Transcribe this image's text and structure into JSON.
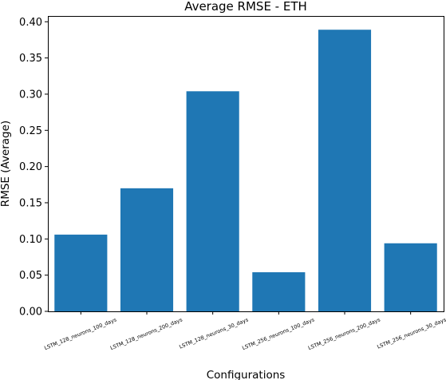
{
  "chart_data": {
    "type": "bar",
    "title": "Average RMSE - ETH",
    "xlabel": "Configurations",
    "ylabel": "RMSE (Average)",
    "categories": [
      "LSTM_128_neurons_100_days",
      "LSTM_128_neurons_200_days",
      "LSTM_128_neurons_30_days",
      "LSTM_256_neurons_100_days",
      "LSTM_256_neurons_200_days",
      "LSTM_256_neurons_30_days"
    ],
    "values": [
      0.106,
      0.17,
      0.304,
      0.054,
      0.389,
      0.094
    ],
    "ylim": [
      0,
      0.408
    ],
    "yticks": [
      "0.00",
      "0.05",
      "0.10",
      "0.15",
      "0.20",
      "0.25",
      "0.30",
      "0.35",
      "0.40"
    ],
    "ytick_values": [
      0,
      0.05,
      0.1,
      0.15,
      0.2,
      0.25,
      0.3,
      0.35,
      0.4
    ],
    "bar_color": "#1f77b4",
    "grid": false,
    "legend": "none"
  }
}
